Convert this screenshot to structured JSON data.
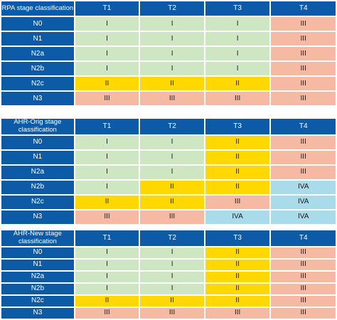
{
  "colors": {
    "header_blue": "#0d5aa7",
    "stage_I": "#cfe6c2",
    "stage_II": "#ffd800",
    "stage_III": "#f6b9a3",
    "stage_IVA": "#a9dbea"
  },
  "tables": [
    {
      "corner": "RPA stage classification",
      "columns": [
        "T1",
        "T2",
        "T3",
        "T4"
      ],
      "rows": [
        {
          "label": "N0",
          "cells": [
            "I",
            "I",
            "I",
            "III"
          ]
        },
        {
          "label": "N1",
          "cells": [
            "I",
            "I",
            "I",
            "III"
          ]
        },
        {
          "label": "N2a",
          "cells": [
            "I",
            "I",
            "I",
            "III"
          ]
        },
        {
          "label": "N2b",
          "cells": [
            "I",
            "I",
            "I",
            "III"
          ]
        },
        {
          "label": "N2c",
          "cells": [
            "II",
            "II",
            "II",
            "III"
          ]
        },
        {
          "label": "N3",
          "cells": [
            "III",
            "III",
            "III",
            "III"
          ]
        }
      ]
    },
    {
      "corner": "AHR-Orig stage classification",
      "columns": [
        "T1",
        "T2",
        "T3",
        "T4"
      ],
      "rows": [
        {
          "label": "N0",
          "cells": [
            "I",
            "I",
            "II",
            "III"
          ]
        },
        {
          "label": "N1",
          "cells": [
            "I",
            "I",
            "II",
            "III"
          ]
        },
        {
          "label": "N2a",
          "cells": [
            "I",
            "I",
            "II",
            "III"
          ]
        },
        {
          "label": "N2b",
          "cells": [
            "I",
            "II",
            "II",
            "IVA"
          ]
        },
        {
          "label": "N2c",
          "cells": [
            "II",
            "II",
            "III",
            "IVA"
          ]
        },
        {
          "label": "N3",
          "cells": [
            "III",
            "III",
            "IVA",
            "IVA"
          ]
        }
      ]
    },
    {
      "corner": "AHR-New stage classification",
      "columns": [
        "T1",
        "T2",
        "T3",
        "T4"
      ],
      "rows": [
        {
          "label": "N0",
          "cells": [
            "I",
            "I",
            "II",
            "III"
          ]
        },
        {
          "label": "N1",
          "cells": [
            "I",
            "I",
            "II",
            "III"
          ]
        },
        {
          "label": "N2a",
          "cells": [
            "I",
            "I",
            "II",
            "III"
          ]
        },
        {
          "label": "N2b",
          "cells": [
            "I",
            "I",
            "II",
            "III"
          ]
        },
        {
          "label": "N2c",
          "cells": [
            "II",
            "II",
            "II",
            "III"
          ]
        },
        {
          "label": "N3",
          "cells": [
            "III",
            "III",
            "III",
            "III"
          ]
        }
      ]
    }
  ]
}
